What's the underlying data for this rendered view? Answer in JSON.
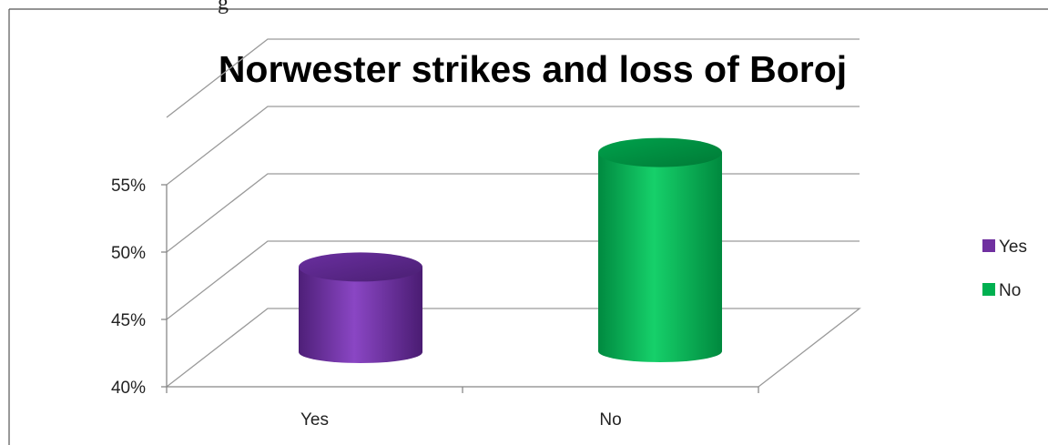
{
  "page": {
    "caption_fragment": "g"
  },
  "chart_data": {
    "type": "bar",
    "style": "3d-cylinder",
    "title": "Norwester strikes and loss of Boroj",
    "categories": [
      "Yes",
      "No"
    ],
    "series": [
      {
        "name": "Yes",
        "category": "Yes",
        "value": 47,
        "color": "#7030A0"
      },
      {
        "name": "No",
        "category": "No",
        "value": 55.5,
        "color": "#00B050"
      }
    ],
    "ylim": [
      40,
      55
    ],
    "yticks": [
      "40%",
      "45%",
      "50%",
      "55%"
    ],
    "ytick_values": [
      40,
      45,
      50,
      55
    ],
    "extra_gridline_value": 60,
    "grid": true,
    "legend": "right",
    "xlabel": "",
    "ylabel": ""
  }
}
